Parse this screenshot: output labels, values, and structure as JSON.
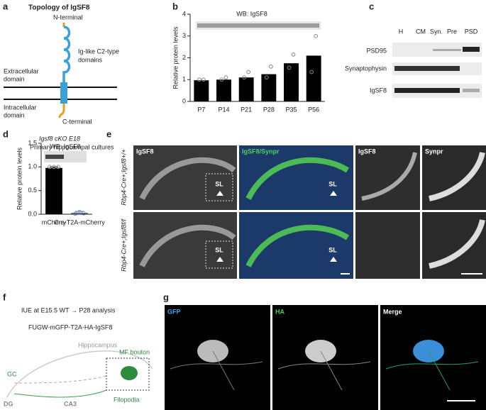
{
  "panel_a": {
    "label": "a",
    "title": "Topology of IgSF8",
    "n_terminal": "N-terminal",
    "domains": [
      "Ig-like C2-type",
      "domains"
    ],
    "extracellular": [
      "Extracellular",
      "domain"
    ],
    "intracellular": [
      "Intracellular",
      "domain"
    ],
    "c_terminal": "C-terminal"
  },
  "panel_c": {
    "label": "c",
    "lanes": [
      "H",
      "CM",
      "Syn.",
      "Pre",
      "PSD"
    ],
    "rows": [
      "PSD95",
      "Synaptophysin",
      "IgSF8"
    ]
  },
  "panel_e": {
    "label": "e",
    "rows": [
      "Rbp4-Cre+;Igsf8+/+",
      "Rbp4-Cre+;Igsf8f/f"
    ],
    "columns": [
      "IgSF8",
      "IgSF8/Synpr",
      "IgSF8",
      "Synpr"
    ],
    "region": "SL"
  },
  "panel_f": {
    "label": "f",
    "line1": "IUE at E15.5 WT → P28 analysis",
    "line2": "FUGW-mGFP-T2A-HA-IgSF8",
    "hippocampus": "Hippocampus",
    "bouton": "MF bouton",
    "gc": "GC",
    "dg": "DG",
    "ca3": "CA3",
    "filopodia": "Filopodia"
  },
  "panel_g": {
    "label": "g",
    "columns": [
      "GFP",
      "HA",
      "Merge"
    ]
  },
  "chart_data": [
    {
      "type": "bar",
      "label": "b",
      "annotation": "WB: IgSF8",
      "y_label": "Relative protein levels",
      "categories": [
        "P7",
        "P14",
        "P21",
        "P28",
        "P35",
        "P56"
      ],
      "values": [
        0.97,
        1.0,
        1.1,
        1.25,
        1.75,
        2.1
      ],
      "color": "#000000",
      "points": [
        [
          1,
          1
        ],
        [
          1,
          1.1
        ],
        [
          1.1,
          1.35
        ],
        [
          1.1,
          1.6
        ],
        [
          1.55,
          2.15
        ],
        [
          1.35,
          3.0
        ]
      ],
      "ylim": [
        0,
        4
      ],
      "yticks": [
        0,
        1,
        2,
        3,
        4
      ]
    },
    {
      "type": "bar",
      "label": "d",
      "title": "Igsf8 cKO E18",
      "subtitle": "Primary hippocampal cultures",
      "annotation": "WB: IgSF8",
      "y_label": "Relative protein levels",
      "categories": [
        "mCherry",
        "Cre-T2A-mCherry"
      ],
      "values": [
        0.98,
        0.03
      ],
      "errors": [
        0.02,
        0.03
      ],
      "colors": [
        "#000000",
        "#3b7dc4"
      ],
      "points": [
        [
          1,
          1,
          1
        ],
        [
          0.01,
          0.05,
          0.02
        ]
      ],
      "ylim": [
        0,
        1.5
      ],
      "yticks": [
        {
          "value": 0,
          "label": "0.0"
        },
        {
          "value": 0.5,
          "label": "0.5"
        },
        {
          "value": 1,
          "label": "1.0"
        },
        {
          "value": 1.5,
          "label": "1.5"
        }
      ]
    }
  ]
}
